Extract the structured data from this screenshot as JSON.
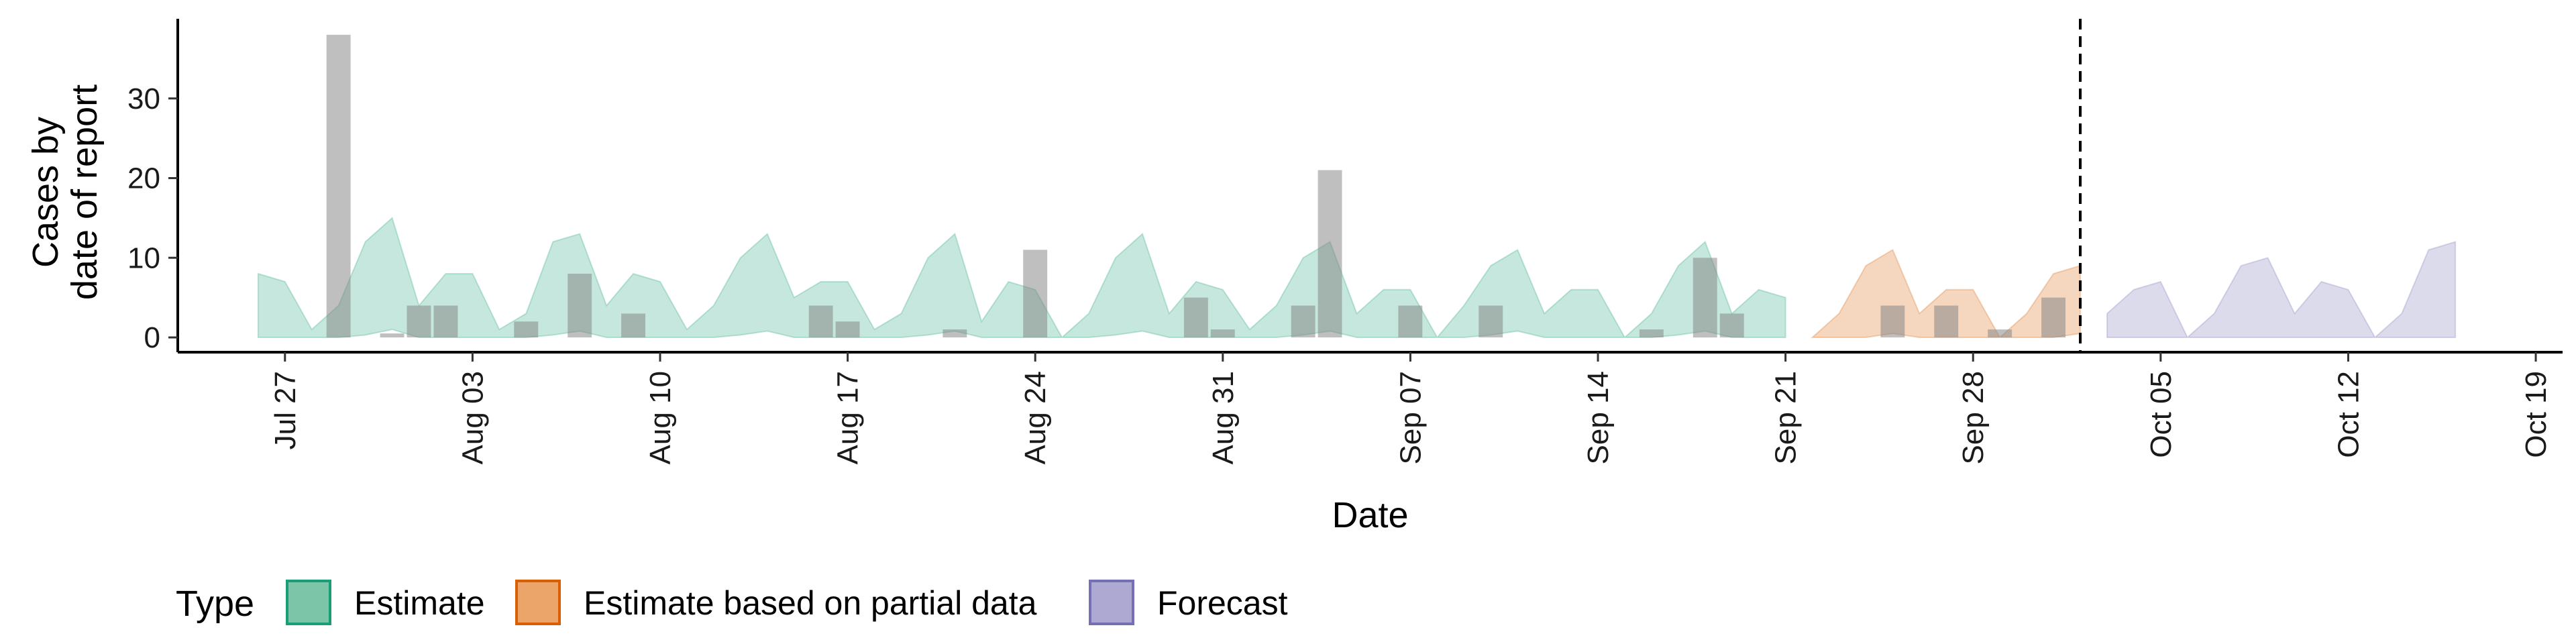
{
  "chart_data": {
    "type": "area",
    "xlabel": "Date",
    "ylabel_lines": [
      "Cases by",
      "date of report"
    ],
    "ylim": [
      0,
      40
    ],
    "yticks": [
      0,
      10,
      20,
      30
    ],
    "xlim": [
      "2020-07-23",
      "2020-10-20"
    ],
    "x_ticks": [
      {
        "date": "2020-07-27",
        "label": "Jul 27"
      },
      {
        "date": "2020-08-03",
        "label": "Aug 03"
      },
      {
        "date": "2020-08-10",
        "label": "Aug 10"
      },
      {
        "date": "2020-08-17",
        "label": "Aug 17"
      },
      {
        "date": "2020-08-24",
        "label": "Aug 24"
      },
      {
        "date": "2020-08-31",
        "label": "Aug 31"
      },
      {
        "date": "2020-09-07",
        "label": "Sep 07"
      },
      {
        "date": "2020-09-14",
        "label": "Sep 14"
      },
      {
        "date": "2020-09-21",
        "label": "Sep 21"
      },
      {
        "date": "2020-09-28",
        "label": "Sep 28"
      },
      {
        "date": "2020-10-05",
        "label": "Oct 05"
      },
      {
        "date": "2020-10-12",
        "label": "Oct 12"
      },
      {
        "date": "2020-10-19",
        "label": "Oct 19"
      }
    ],
    "vline_date": "2020-10-02",
    "legend": {
      "title": "Type",
      "position": "bottom-left",
      "items": [
        {
          "label": "Estimate",
          "fill": "#7dc5a8",
          "stroke": "#1b9e77"
        },
        {
          "label": "Estimate based on partial data",
          "fill": "#eba56b",
          "stroke": "#d95f02"
        },
        {
          "label": "Forecast",
          "fill": "#ada9d3",
          "stroke": "#7570b3"
        }
      ]
    },
    "series": [
      {
        "name": "Estimate",
        "color": "#1b9e77",
        "start_date": "2020-07-26",
        "upper": [
          8,
          7,
          1,
          4,
          12,
          15,
          4,
          8,
          8,
          1,
          3,
          12,
          13,
          4,
          8,
          7,
          1,
          4,
          10,
          13,
          5,
          7,
          7,
          1,
          3,
          10,
          13,
          2,
          7,
          6,
          0,
          3,
          10,
          13,
          3,
          7,
          6,
          1,
          4,
          10,
          12,
          3,
          6,
          6,
          0,
          4,
          9,
          11,
          3,
          6,
          6,
          0,
          3,
          9,
          12,
          3,
          6,
          5
        ],
        "lower": [
          0,
          0,
          0,
          0,
          0.3,
          1,
          0,
          0,
          0,
          0,
          0,
          0.3,
          0.8,
          0,
          0,
          0,
          0,
          0,
          0.3,
          0.8,
          0,
          0,
          0,
          0,
          0,
          0.3,
          0.8,
          0,
          0,
          0,
          0,
          0,
          0.3,
          0.8,
          0,
          0,
          0,
          0,
          0,
          0.3,
          0.8,
          0,
          0,
          0,
          0,
          0,
          0.3,
          0.8,
          0,
          0,
          0,
          0,
          0,
          0.3,
          0.8,
          0,
          0,
          0
        ]
      },
      {
        "name": "Estimate based on partial data",
        "color": "#d95f02",
        "start_date": "2020-09-22",
        "upper": [
          0,
          3,
          9,
          11,
          3,
          6,
          6,
          0,
          3,
          8,
          9
        ],
        "lower": [
          0,
          0,
          0,
          0.5,
          0,
          0,
          0,
          0,
          0,
          0,
          0.5
        ]
      },
      {
        "name": "Forecast",
        "color": "#7570b3",
        "start_date": "2020-10-03",
        "upper": [
          3,
          6,
          7,
          0,
          3,
          9,
          10,
          3,
          7,
          6,
          0,
          3,
          11,
          12
        ],
        "lower": [
          0,
          0,
          0,
          0,
          0,
          0,
          0,
          0,
          0,
          0,
          0,
          0,
          0,
          0
        ]
      }
    ],
    "bars": [
      {
        "date": "2020-07-29",
        "value": 38
      },
      {
        "date": "2020-07-31",
        "value": 0.5
      },
      {
        "date": "2020-08-01",
        "value": 4
      },
      {
        "date": "2020-08-02",
        "value": 4
      },
      {
        "date": "2020-08-05",
        "value": 2
      },
      {
        "date": "2020-08-07",
        "value": 8
      },
      {
        "date": "2020-08-09",
        "value": 3
      },
      {
        "date": "2020-08-16",
        "value": 4
      },
      {
        "date": "2020-08-17",
        "value": 2
      },
      {
        "date": "2020-08-21",
        "value": 1
      },
      {
        "date": "2020-08-24",
        "value": 11
      },
      {
        "date": "2020-08-30",
        "value": 5
      },
      {
        "date": "2020-08-31",
        "value": 1
      },
      {
        "date": "2020-09-03",
        "value": 4
      },
      {
        "date": "2020-09-04",
        "value": 21
      },
      {
        "date": "2020-09-07",
        "value": 4
      },
      {
        "date": "2020-09-10",
        "value": 4
      },
      {
        "date": "2020-09-16",
        "value": 1
      },
      {
        "date": "2020-09-18",
        "value": 10
      },
      {
        "date": "2020-09-19",
        "value": 3
      },
      {
        "date": "2020-09-25",
        "value": 4
      },
      {
        "date": "2020-09-27",
        "value": 4
      },
      {
        "date": "2020-09-29",
        "value": 1
      },
      {
        "date": "2020-10-01",
        "value": 5
      }
    ]
  }
}
